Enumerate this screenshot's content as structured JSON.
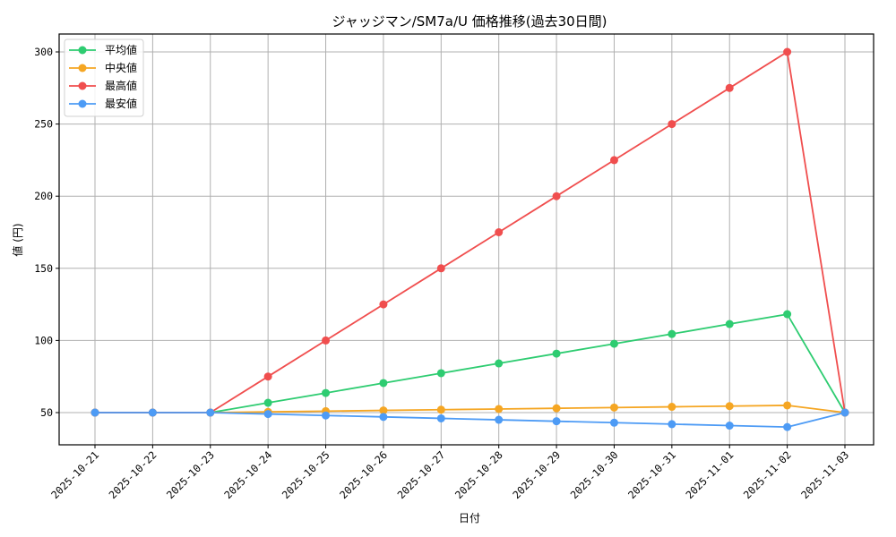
{
  "chart_data": {
    "type": "line",
    "title": "ジャッジマン/SM7a/U 価格推移(過去30日間)",
    "xlabel": "日付",
    "ylabel": "値 (円)",
    "ylim": [
      27,
      313
    ],
    "yticks": [
      50,
      100,
      150,
      200,
      250,
      300
    ],
    "grid": true,
    "legend_position": "upper left",
    "x": [
      "2025-10-21",
      "2025-10-22",
      "2025-10-23",
      "2025-10-24",
      "2025-10-25",
      "2025-10-26",
      "2025-10-27",
      "2025-10-28",
      "2025-10-29",
      "2025-10-30",
      "2025-10-31",
      "2025-11-01",
      "2025-11-02",
      "2025-11-03"
    ],
    "series": [
      {
        "name": "平均値",
        "color": "#2ecc71",
        "values": [
          50,
          50,
          50,
          56.8,
          63.6,
          70.5,
          77.3,
          84.1,
          90.9,
          97.7,
          104.5,
          111.4,
          118.2,
          50
        ]
      },
      {
        "name": "中央値",
        "color": "#f5a623",
        "values": [
          50,
          50,
          50,
          50.5,
          51,
          51.5,
          52,
          52.5,
          53,
          53.5,
          54,
          54.5,
          55,
          50
        ]
      },
      {
        "name": "最高値",
        "color": "#f04e4e",
        "values": [
          50,
          50,
          50,
          75,
          100,
          125,
          150,
          175,
          200,
          225,
          250,
          275,
          300,
          50
        ]
      },
      {
        "name": "最安値",
        "color": "#4d9bf5",
        "values": [
          50,
          50,
          50,
          49,
          48,
          47,
          46,
          45,
          44,
          43,
          42,
          41,
          40,
          50
        ]
      }
    ]
  }
}
